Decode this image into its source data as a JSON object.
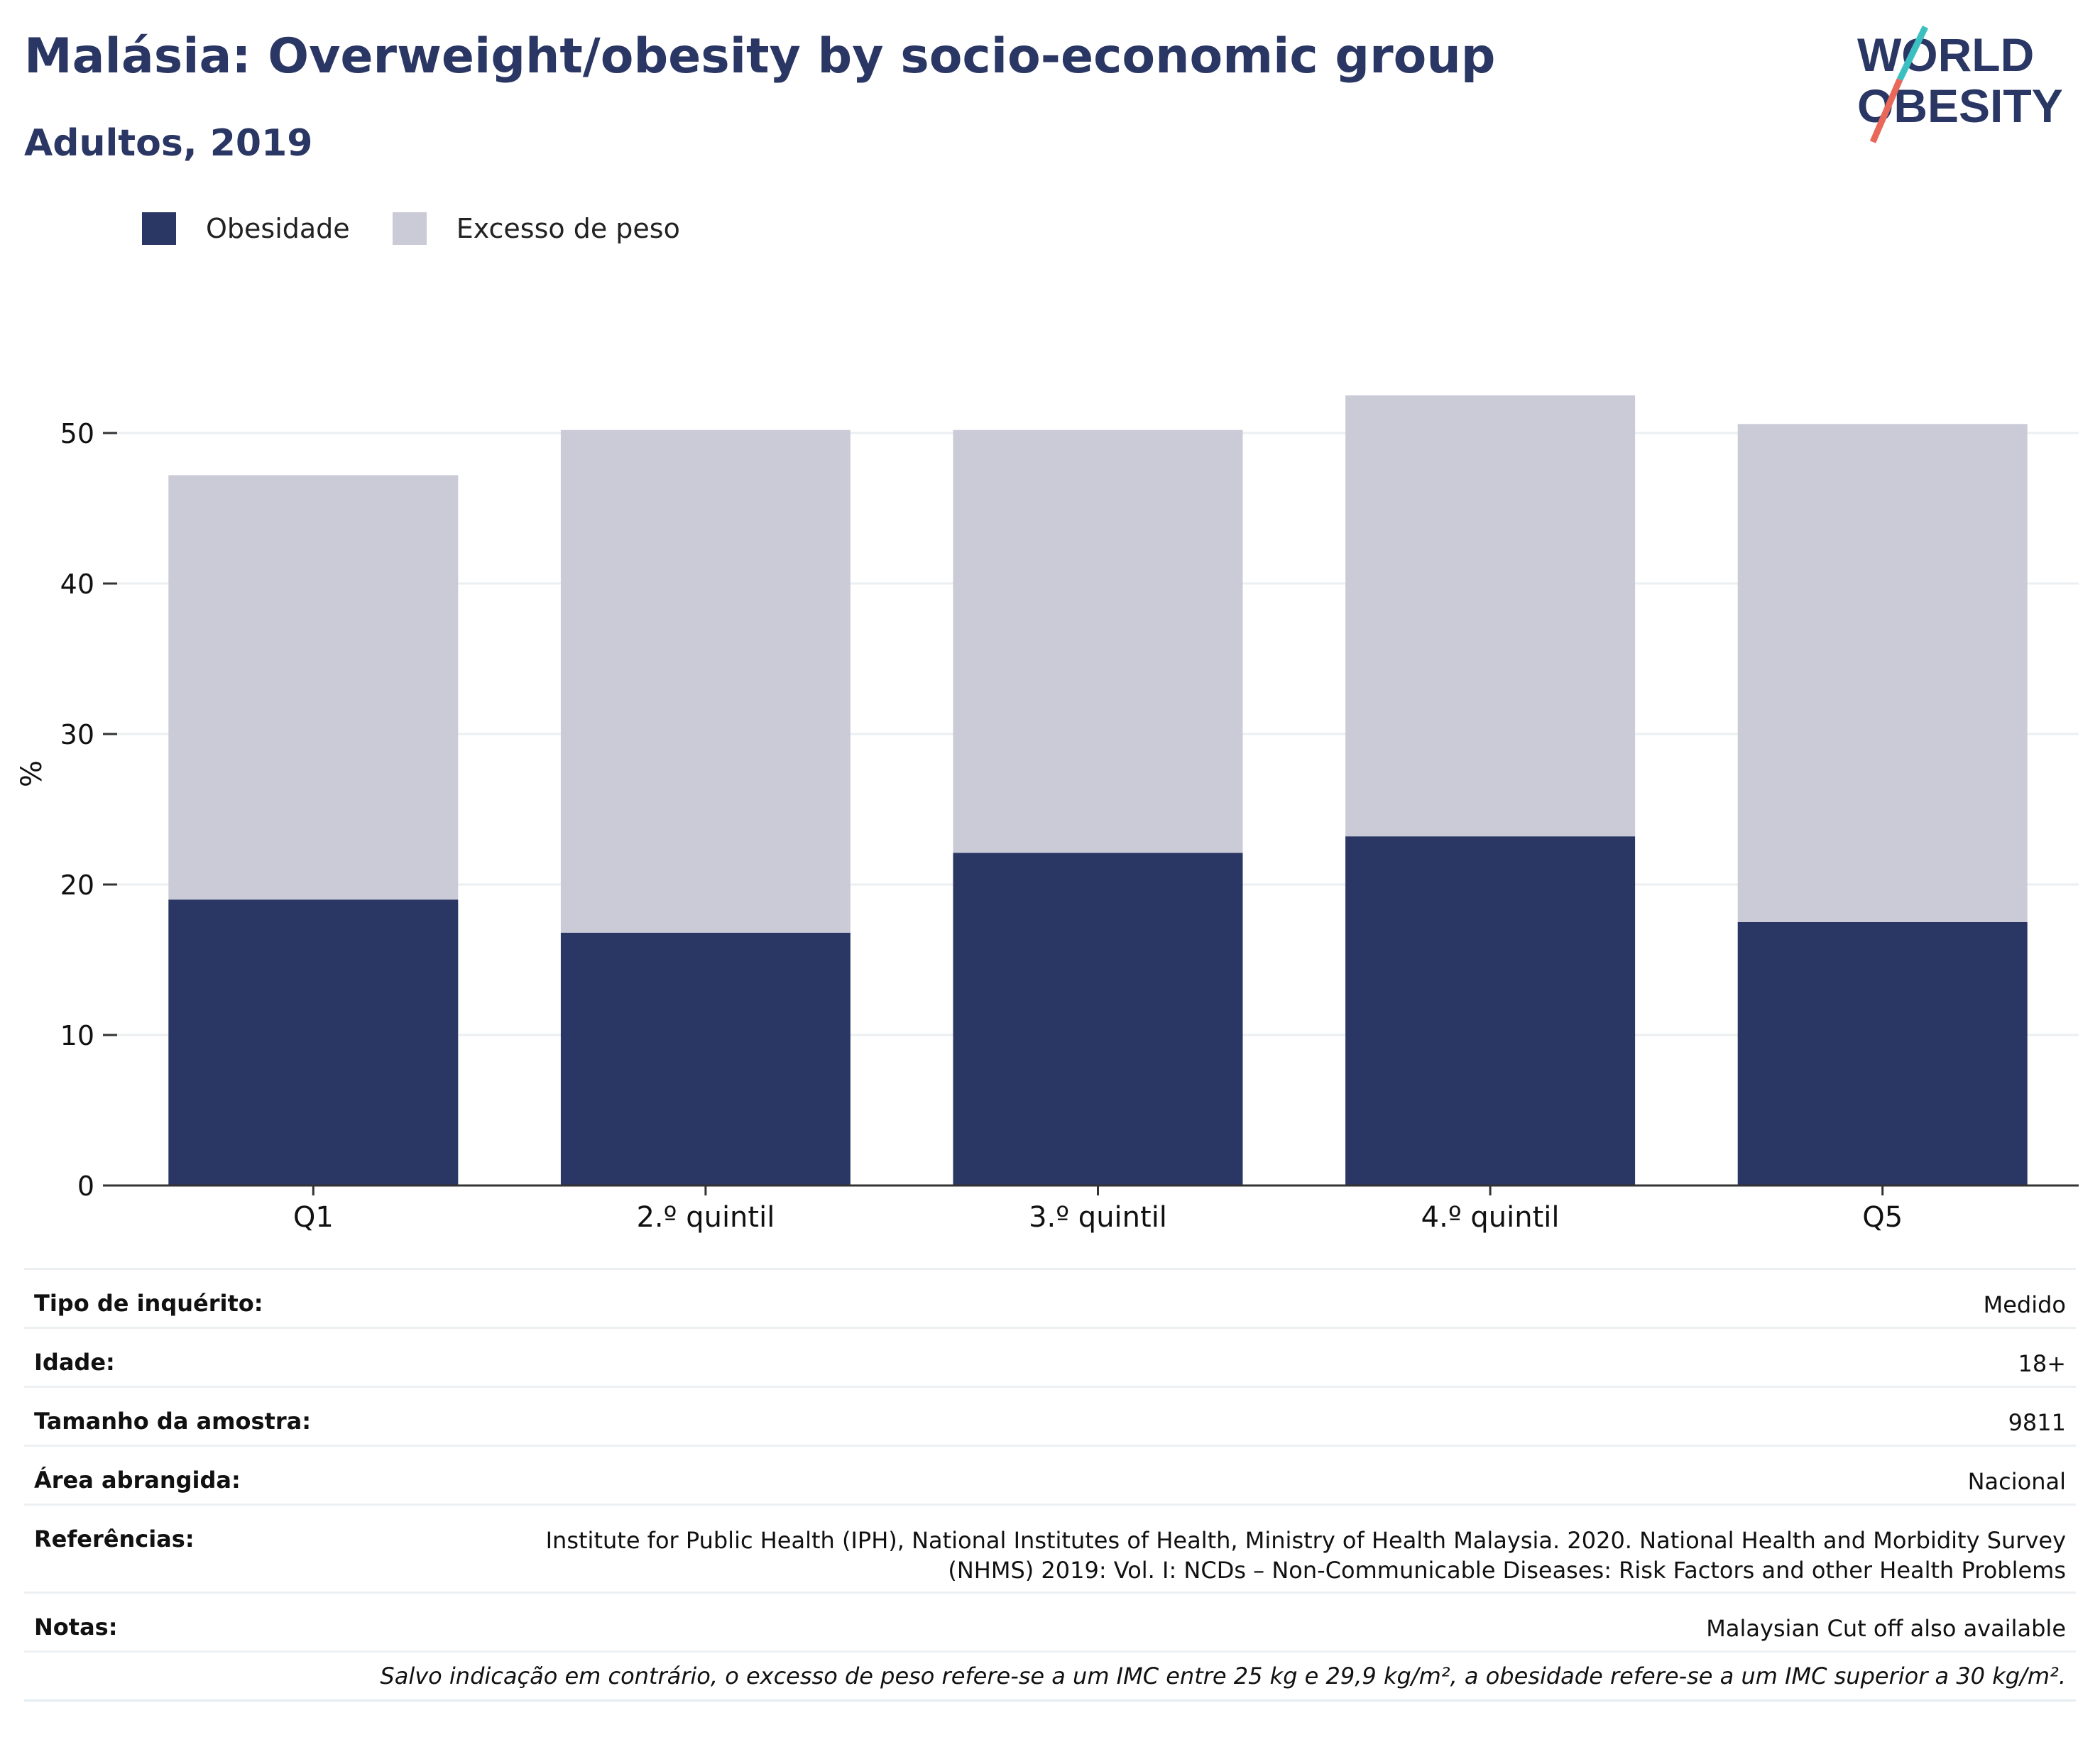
{
  "header": {
    "title": "Malásia: Overweight/obesity by socio-economic group",
    "subtitle": "Adultos, 2019"
  },
  "logo": {
    "line1": "WORLD",
    "line2": "OBESITY"
  },
  "colors": {
    "obesity": "#2a3663",
    "overweight": "#cacbd7",
    "text": "#2a3663",
    "grid": "#eceff2"
  },
  "chart_data": {
    "type": "bar",
    "stacked": true,
    "categories": [
      "Q1",
      "2.º quintil",
      "3.º quintil",
      "4.º quintil",
      "Q5"
    ],
    "series": [
      {
        "name": "Obesidade",
        "values": [
          19.0,
          16.8,
          22.1,
          23.2,
          17.5
        ]
      },
      {
        "name": "Excesso de peso",
        "values": [
          28.2,
          33.4,
          28.1,
          29.3,
          33.1
        ]
      }
    ],
    "ylabel": "%",
    "ylim": [
      0,
      55
    ],
    "yticks": [
      0,
      10,
      20,
      30,
      40,
      50
    ],
    "grid": true,
    "legend": "top-left"
  },
  "meta": {
    "survey_type_label": "Tipo de inquérito:",
    "survey_type_value": "Medido",
    "age_label": "Idade:",
    "age_value": "18+",
    "sample_label": "Tamanho da amostra:",
    "sample_value": "9811",
    "area_label": "Área abrangida:",
    "area_value": "Nacional",
    "refs_label": "Referências:",
    "refs_line1": "Institute for Public Health (IPH), National Institutes of Health, Ministry of Health Malaysia. 2020. National Health and Morbidity Survey",
    "refs_line2": "(NHMS) 2019: Vol. I: NCDs – Non-Communicable Diseases: Risk Factors and other Health Problems",
    "notes_label": "Notas:",
    "notes_value": "Malaysian Cut off also available",
    "footnote": "Salvo indicação em contrário, o excesso de peso refere-se a um IMC entre 25 kg e 29,9 kg/m², a obesidade refere-se a um IMC superior a 30 kg/m²."
  }
}
